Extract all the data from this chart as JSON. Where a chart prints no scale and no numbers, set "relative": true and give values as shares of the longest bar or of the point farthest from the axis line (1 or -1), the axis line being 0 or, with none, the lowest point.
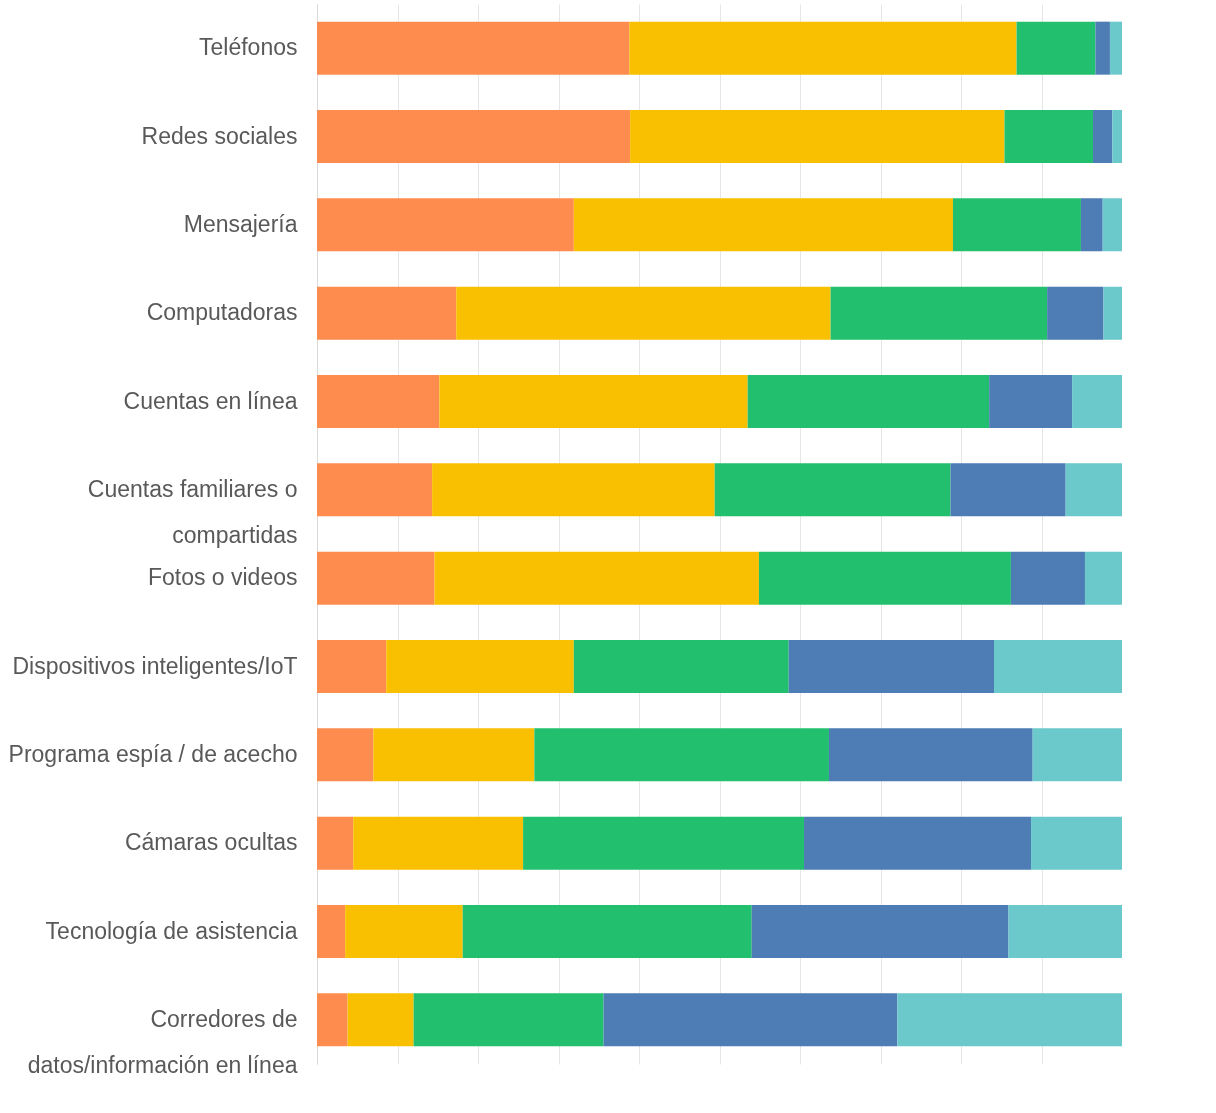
{
  "chart_data": {
    "type": "bar",
    "orientation": "horizontal",
    "stacked": true,
    "relative": true,
    "grid": "x",
    "legend": false,
    "categories": [
      "Teléfonos",
      "Redes sociales",
      "Mensajería",
      "Computadoras",
      "Cuentas en línea",
      "Cuentas familiares o compartidas",
      "Fotos o videos",
      "Dispositivos inteligentes/IoT",
      "Programa espía / de acecho",
      "Cámaras ocultas",
      "Tecnología de asistencia",
      "Corredores de datos/información en línea"
    ],
    "series": [
      {
        "color": "#fd8c4e",
        "values": [
          0.388,
          0.389,
          0.319,
          0.173,
          0.152,
          0.143,
          0.146,
          0.086,
          0.07,
          0.045,
          0.035,
          0.038
        ]
      },
      {
        "color": "#f8c000",
        "values": [
          0.481,
          0.465,
          0.471,
          0.465,
          0.383,
          0.351,
          0.403,
          0.233,
          0.2,
          0.211,
          0.146,
          0.082
        ]
      },
      {
        "color": "#22c06e",
        "values": [
          0.098,
          0.11,
          0.159,
          0.269,
          0.3,
          0.293,
          0.313,
          0.267,
          0.366,
          0.349,
          0.359,
          0.236
        ]
      },
      {
        "color": "#4e7cb5",
        "values": [
          0.018,
          0.024,
          0.027,
          0.07,
          0.103,
          0.143,
          0.092,
          0.255,
          0.253,
          0.282,
          0.319,
          0.365
        ]
      },
      {
        "color": "#6bc9cc",
        "values": [
          0.015,
          0.012,
          0.024,
          0.023,
          0.062,
          0.07,
          0.046,
          0.159,
          0.111,
          0.113,
          0.141,
          0.279
        ]
      }
    ]
  }
}
